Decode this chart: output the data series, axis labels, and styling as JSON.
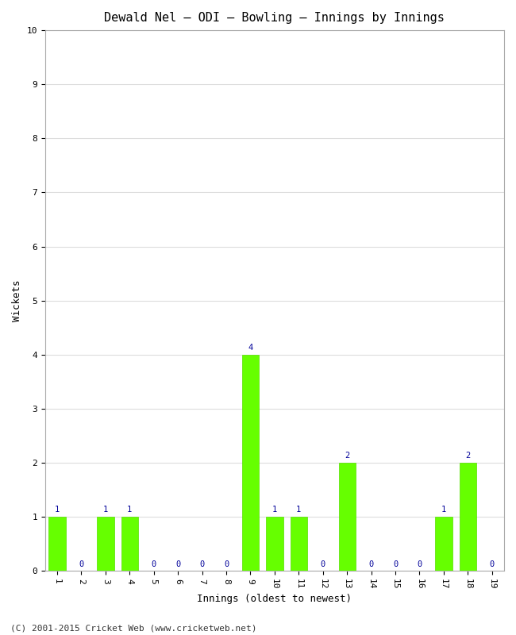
{
  "title": "Dewald Nel – ODI – Bowling – Innings by Innings",
  "xlabel": "Innings (oldest to newest)",
  "ylabel": "Wickets",
  "footer": "(C) 2001-2015 Cricket Web (www.cricketweb.net)",
  "categories": [
    "1",
    "2",
    "3",
    "4",
    "5",
    "6",
    "7",
    "8",
    "9",
    "10",
    "11",
    "12",
    "13",
    "14",
    "15",
    "16",
    "17",
    "18",
    "19"
  ],
  "values": [
    1,
    0,
    1,
    1,
    0,
    0,
    0,
    0,
    4,
    1,
    1,
    0,
    2,
    0,
    0,
    0,
    1,
    2,
    0
  ],
  "bar_color": "#66ff00",
  "bar_edge_color": "#55dd00",
  "label_color": "#000099",
  "ylim": [
    0,
    10
  ],
  "yticks": [
    0,
    1,
    2,
    3,
    4,
    5,
    6,
    7,
    8,
    9,
    10
  ],
  "background_color": "#ffffff",
  "plot_bg_color": "#ffffff",
  "grid_color": "#dddddd",
  "title_fontsize": 11,
  "axis_label_fontsize": 9,
  "tick_fontsize": 8,
  "bar_label_fontsize": 7.5,
  "footer_fontsize": 8
}
